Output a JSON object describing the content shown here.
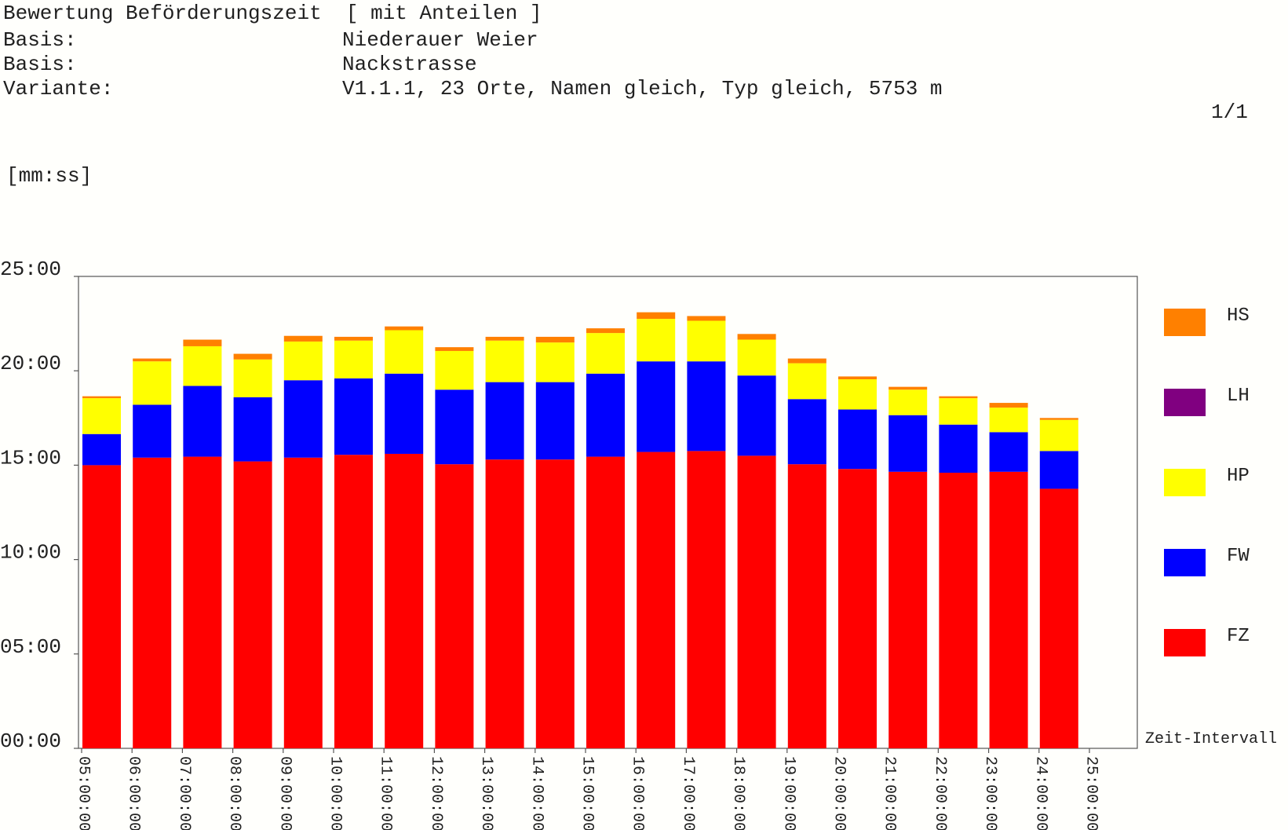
{
  "header": {
    "title": "Bewertung Beförderungszeit  [ mit Anteilen ]",
    "rows": [
      {
        "label": "Basis:",
        "value": "Niederauer Weier"
      },
      {
        "label": "Basis:",
        "value": "Nackstrasse"
      },
      {
        "label": "Variante:",
        "value": "V1.1.1, 23 Orte, Namen gleich, Typ gleich, 5753 m"
      }
    ],
    "page": "1/1",
    "unit": "[mm:ss]"
  },
  "chart_data": {
    "type": "bar",
    "stacked": true,
    "xlabel": "Zeit-Intervall",
    "ylabel": "[mm:ss]",
    "ylim": [
      0,
      25
    ],
    "y_ticks": [
      "00:00",
      "05:00",
      "10:00",
      "15:00",
      "20:00",
      "25:00"
    ],
    "grid": false,
    "legend_position": "right",
    "x_ticks": [
      "05:00:00",
      "06:00:00",
      "07:00:00",
      "08:00:00",
      "09:00:00",
      "10:00:00",
      "11:00:00",
      "12:00:00",
      "13:00:00",
      "14:00:00",
      "15:00:00",
      "16:00:00",
      "17:00:00",
      "18:00:00",
      "19:00:00",
      "20:00:00",
      "21:00:00",
      "22:00:00",
      "23:00:00",
      "24:00:00",
      "25:00:00"
    ],
    "categories": [
      "05:00:00",
      "06:00:00",
      "07:00:00",
      "08:00:00",
      "09:00:00",
      "10:00:00",
      "11:00:00",
      "12:00:00",
      "13:00:00",
      "14:00:00",
      "15:00:00",
      "16:00:00",
      "17:00:00",
      "18:00:00",
      "19:00:00",
      "20:00:00",
      "21:00:00",
      "22:00:00",
      "23:00:00",
      "24:00:00"
    ],
    "series": [
      {
        "name": "FZ",
        "color": "#ff0000",
        "values": [
          15.0,
          15.4,
          15.45,
          15.2,
          15.4,
          15.55,
          15.6,
          15.05,
          15.3,
          15.3,
          15.45,
          15.7,
          15.75,
          15.5,
          15.05,
          14.8,
          14.65,
          14.6,
          14.65,
          13.75
        ]
      },
      {
        "name": "FW",
        "color": "#0000ff",
        "values": [
          1.65,
          2.8,
          3.75,
          3.4,
          4.1,
          4.05,
          4.25,
          3.95,
          4.1,
          4.1,
          4.4,
          4.8,
          4.75,
          4.25,
          3.45,
          3.15,
          3.0,
          2.55,
          2.1,
          2.0
        ]
      },
      {
        "name": "HP",
        "color": "#ffff00",
        "values": [
          1.9,
          2.3,
          2.1,
          2.0,
          2.05,
          2.0,
          2.3,
          2.05,
          2.2,
          2.1,
          2.15,
          2.25,
          2.15,
          1.9,
          1.9,
          1.6,
          1.35,
          1.4,
          1.3,
          1.65
        ]
      },
      {
        "name": "LH",
        "color": "#800080",
        "values": [
          0,
          0,
          0,
          0,
          0,
          0,
          0,
          0,
          0,
          0,
          0,
          0,
          0,
          0,
          0,
          0,
          0,
          0,
          0,
          0
        ]
      },
      {
        "name": "HS",
        "color": "#ff8000",
        "values": [
          0.1,
          0.15,
          0.35,
          0.3,
          0.3,
          0.2,
          0.2,
          0.2,
          0.2,
          0.3,
          0.25,
          0.35,
          0.25,
          0.3,
          0.25,
          0.15,
          0.15,
          0.1,
          0.25,
          0.1
        ]
      }
    ]
  }
}
